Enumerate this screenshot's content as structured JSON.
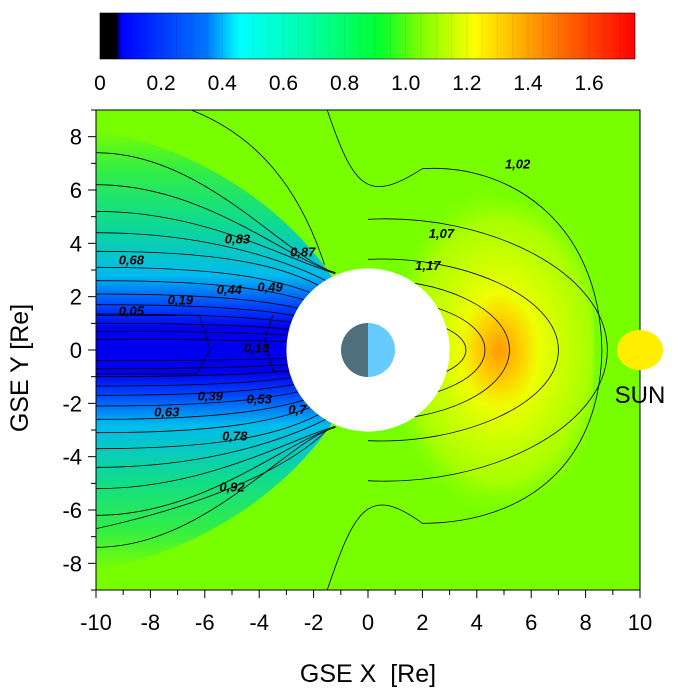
{
  "chart_data": {
    "type": "contour",
    "xlabel": "GSE X  [Re]",
    "ylabel": "GSE Y [Re]",
    "xlim": [
      -10,
      10
    ],
    "ylim": [
      -9,
      9
    ],
    "x_ticks": [
      -10,
      -8,
      -6,
      -4,
      -2,
      0,
      2,
      4,
      6,
      8,
      10
    ],
    "y_ticks": [
      -8,
      -6,
      -4,
      -2,
      0,
      2,
      4,
      6,
      8
    ],
    "x_tick_labels": [
      "-10",
      "-8",
      "-6",
      "-4",
      "-2",
      "0",
      "2",
      "4",
      "6",
      "8",
      "10"
    ],
    "y_tick_labels": [
      "-8",
      "-6",
      "-4",
      "-2",
      "0",
      "2",
      "4",
      "6",
      "8"
    ],
    "colorbar": {
      "range": [
        0,
        1.75
      ],
      "tick_values": [
        0,
        0.2,
        0.4,
        0.6,
        0.8,
        1.0,
        1.2,
        1.4,
        1.6
      ],
      "tick_labels": [
        "0",
        "0.2",
        "0.4",
        "0.6",
        "0.8",
        "1.0",
        "1.2",
        "1.4",
        "1.6"
      ],
      "colors": [
        "#000000",
        "#0000ff",
        "#00ffff",
        "#00ff7f",
        "#00ff00",
        "#7fff00",
        "#ffff00",
        "#ff8000",
        "#ff0000"
      ]
    },
    "background_level": 0.97,
    "contour_labels": [
      {
        "text": "1,02",
        "x": 5.5,
        "y": 6.8
      },
      {
        "text": "1,07",
        "x": 2.7,
        "y": 4.2
      },
      {
        "text": "1,17",
        "x": 2.2,
        "y": 3.0
      },
      {
        "text": "0,83",
        "x": -4.8,
        "y": 4.0
      },
      {
        "text": "0,87",
        "x": -2.4,
        "y": 3.5
      },
      {
        "text": "0,68",
        "x": -8.7,
        "y": 3.2
      },
      {
        "text": "0,44",
        "x": -5.1,
        "y": 2.1
      },
      {
        "text": "0,49",
        "x": -3.6,
        "y": 2.2
      },
      {
        "text": "0,19",
        "x": -6.9,
        "y": 1.7
      },
      {
        "text": "0,05",
        "x": -8.7,
        "y": 1.3
      },
      {
        "text": "0,10",
        "x": -4.1,
        "y": -0.1
      },
      {
        "text": "0,39",
        "x": -5.8,
        "y": -1.9
      },
      {
        "text": "0,53",
        "x": -4.0,
        "y": -2.0
      },
      {
        "text": "0,7",
        "x": -2.6,
        "y": -2.4
      },
      {
        "text": "0,63",
        "x": -7.4,
        "y": -2.5
      },
      {
        "text": "0,78",
        "x": -4.9,
        "y": -3.4
      },
      {
        "text": "0,92",
        "x": -5.0,
        "y": -5.3
      }
    ],
    "earth_excluded_radius": 3.0,
    "earth_center": [
      0,
      0
    ],
    "sun_marker": {
      "x": 10,
      "y": 0,
      "label": "SUN"
    }
  },
  "colors": {
    "background_green": "#77ff00",
    "earth_day": "#66ccff",
    "earth_night": "#4f6f7d",
    "sun": "#ffee00"
  }
}
